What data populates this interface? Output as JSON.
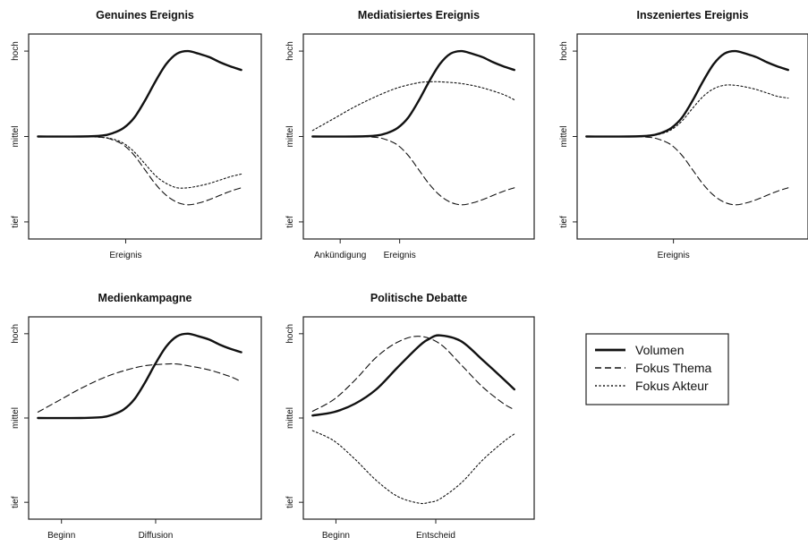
{
  "chart_data": [
    {
      "type": "line",
      "title": "Genuines Ereignis",
      "ylevels": [
        "tief",
        "mittel",
        "hoch"
      ],
      "ylim": [
        -1.2,
        1.2
      ],
      "xlim": [
        0,
        10
      ],
      "xticks": [
        {
          "x": 4.1,
          "label": "Ereignis"
        }
      ],
      "series": [
        {
          "name": "Volumen",
          "style": "solid",
          "x": [
            0,
            2,
            3,
            3.5,
            4,
            4.5,
            5,
            5.5,
            6,
            6.5,
            7,
            7.5,
            8,
            8.5,
            9,
            9.5
          ],
          "y": [
            0,
            0,
            0.01,
            0.04,
            0.1,
            0.22,
            0.42,
            0.65,
            0.85,
            0.97,
            1.0,
            0.97,
            0.93,
            0.87,
            0.82,
            0.78
          ]
        },
        {
          "name": "Fokus Thema",
          "style": "dashed",
          "x": [
            0,
            2,
            3,
            3.5,
            4,
            4.5,
            5,
            5.5,
            6,
            6.5,
            7,
            7.5,
            8,
            8.5,
            9,
            9.5
          ],
          "y": [
            0,
            0,
            -0.01,
            -0.04,
            -0.1,
            -0.22,
            -0.39,
            -0.56,
            -0.69,
            -0.77,
            -0.8,
            -0.78,
            -0.74,
            -0.69,
            -0.64,
            -0.6
          ]
        },
        {
          "name": "Fokus Akteur",
          "style": "dotted",
          "x": [
            0,
            2,
            3,
            3.5,
            4,
            4.5,
            5,
            5.5,
            6,
            6.5,
            7,
            7.5,
            8,
            8.5,
            9,
            9.5
          ],
          "y": [
            0,
            0,
            -0.01,
            -0.03,
            -0.08,
            -0.18,
            -0.32,
            -0.46,
            -0.55,
            -0.6,
            -0.6,
            -0.58,
            -0.55,
            -0.51,
            -0.47,
            -0.44
          ]
        }
      ]
    },
    {
      "type": "line",
      "title": "Mediatisiertes Ereignis",
      "ylevels": [
        "tief",
        "mittel",
        "hoch"
      ],
      "ylim": [
        -1.2,
        1.2
      ],
      "xlim": [
        0,
        10
      ],
      "xticks": [
        {
          "x": 1.3,
          "label": "Ankündigung"
        },
        {
          "x": 4.1,
          "label": "Ereignis"
        }
      ],
      "series": [
        {
          "name": "Volumen",
          "style": "solid",
          "x": [
            0,
            2,
            3,
            3.5,
            4,
            4.5,
            5,
            5.5,
            6,
            6.5,
            7,
            7.5,
            8,
            8.5,
            9,
            9.5
          ],
          "y": [
            0,
            0,
            0.01,
            0.04,
            0.1,
            0.22,
            0.42,
            0.65,
            0.85,
            0.97,
            1.0,
            0.97,
            0.93,
            0.87,
            0.82,
            0.78
          ]
        },
        {
          "name": "Fokus Thema",
          "style": "dashed",
          "x": [
            0,
            2,
            3,
            3.5,
            4,
            4.5,
            5,
            5.5,
            6,
            6.5,
            7,
            7.5,
            8,
            8.5,
            9,
            9.5
          ],
          "y": [
            0,
            0,
            -0.01,
            -0.04,
            -0.1,
            -0.22,
            -0.39,
            -0.56,
            -0.69,
            -0.77,
            -0.8,
            -0.78,
            -0.74,
            -0.69,
            -0.64,
            -0.6
          ]
        },
        {
          "name": "Fokus Akteur",
          "style": "dotted",
          "x": [
            0,
            1,
            2,
            3,
            4,
            5,
            5.5,
            6,
            7,
            8,
            9,
            9.5
          ],
          "y": [
            0.07,
            0.21,
            0.35,
            0.47,
            0.57,
            0.63,
            0.64,
            0.64,
            0.62,
            0.57,
            0.49,
            0.43
          ]
        }
      ]
    },
    {
      "type": "line",
      "title": "Inszeniertes Ereignis",
      "ylevels": [
        "tief",
        "mittel",
        "hoch"
      ],
      "ylim": [
        -1.2,
        1.2
      ],
      "xlim": [
        0,
        10
      ],
      "xticks": [
        {
          "x": 4.1,
          "label": "Ereignis"
        }
      ],
      "series": [
        {
          "name": "Volumen",
          "style": "solid",
          "x": [
            0,
            2,
            3,
            3.5,
            4,
            4.5,
            5,
            5.5,
            6,
            6.5,
            7,
            7.5,
            8,
            8.5,
            9,
            9.5
          ],
          "y": [
            0,
            0,
            0.01,
            0.04,
            0.1,
            0.22,
            0.42,
            0.65,
            0.85,
            0.97,
            1.0,
            0.97,
            0.93,
            0.87,
            0.82,
            0.78
          ]
        },
        {
          "name": "Fokus Thema",
          "style": "dashed",
          "x": [
            0,
            2,
            3,
            3.5,
            4,
            4.5,
            5,
            5.5,
            6,
            6.5,
            7,
            7.5,
            8,
            8.5,
            9,
            9.5
          ],
          "y": [
            0,
            0,
            -0.01,
            -0.04,
            -0.1,
            -0.22,
            -0.39,
            -0.56,
            -0.69,
            -0.77,
            -0.8,
            -0.78,
            -0.74,
            -0.69,
            -0.64,
            -0.6
          ]
        },
        {
          "name": "Fokus Akteur",
          "style": "dotted",
          "x": [
            0,
            2,
            3,
            3.5,
            4,
            4.5,
            5,
            5.5,
            6,
            6.5,
            7,
            7.5,
            8,
            8.5,
            9,
            9.5
          ],
          "y": [
            0,
            0,
            0.01,
            0.03,
            0.08,
            0.18,
            0.33,
            0.47,
            0.56,
            0.6,
            0.6,
            0.58,
            0.55,
            0.51,
            0.47,
            0.45
          ]
        }
      ]
    },
    {
      "type": "line",
      "title": "Medienkampagne",
      "ylevels": [
        "tief",
        "mittel",
        "hoch"
      ],
      "ylim": [
        -1.2,
        1.2
      ],
      "xlim": [
        0,
        10
      ],
      "xticks": [
        {
          "x": 1.1,
          "label": "Beginn"
        },
        {
          "x": 5.5,
          "label": "Diffusion"
        }
      ],
      "series": [
        {
          "name": "Volumen",
          "style": "solid",
          "x": [
            0,
            2,
            3,
            3.5,
            4,
            4.5,
            5,
            5.5,
            6,
            6.5,
            7,
            7.5,
            8,
            8.5,
            9,
            9.5
          ],
          "y": [
            0,
            0,
            0.01,
            0.04,
            0.1,
            0.22,
            0.42,
            0.65,
            0.85,
            0.97,
            1.0,
            0.97,
            0.93,
            0.87,
            0.82,
            0.78
          ]
        },
        {
          "name": "Fokus Thema",
          "style": "dashed",
          "x": [
            0,
            1,
            2,
            3,
            4,
            5,
            6,
            6.5,
            7,
            8,
            9,
            9.5
          ],
          "y": [
            0.07,
            0.21,
            0.35,
            0.47,
            0.56,
            0.62,
            0.64,
            0.64,
            0.62,
            0.57,
            0.49,
            0.43
          ]
        }
      ]
    },
    {
      "type": "line",
      "title": "Politische Debatte",
      "ylevels": [
        "tief",
        "mittel",
        "hoch"
      ],
      "ylim": [
        -1.2,
        1.2
      ],
      "xlim": [
        0,
        10
      ],
      "xticks": [
        {
          "x": 1.1,
          "label": "Beginn"
        },
        {
          "x": 5.8,
          "label": "Entscheid"
        }
      ],
      "series": [
        {
          "name": "Volumen",
          "style": "solid",
          "x": [
            0,
            1,
            2,
            3,
            4,
            5,
            5.5,
            6,
            7,
            8,
            9,
            9.5
          ],
          "y": [
            0.03,
            0.07,
            0.17,
            0.34,
            0.6,
            0.85,
            0.94,
            0.98,
            0.91,
            0.69,
            0.46,
            0.34
          ]
        },
        {
          "name": "Fokus Thema",
          "style": "dashed",
          "x": [
            0,
            1,
            2,
            3,
            4,
            5,
            6,
            7,
            8,
            9,
            9.5
          ],
          "y": [
            0.08,
            0.22,
            0.45,
            0.72,
            0.9,
            0.97,
            0.88,
            0.63,
            0.37,
            0.17,
            0.1
          ]
        },
        {
          "name": "Fokus Akteur",
          "style": "dotted",
          "x": [
            0,
            1,
            2,
            3,
            4,
            5,
            5.5,
            6,
            7,
            8,
            9,
            9.5
          ],
          "y": [
            -0.15,
            -0.27,
            -0.49,
            -0.74,
            -0.93,
            -1.01,
            -1.0,
            -0.96,
            -0.77,
            -0.5,
            -0.28,
            -0.19
          ]
        }
      ]
    }
  ],
  "legend": {
    "placement": "right",
    "items": [
      {
        "label": "Volumen",
        "style": "solid"
      },
      {
        "label": "Fokus Thema",
        "style": "dashed"
      },
      {
        "label": "Fokus Akteur",
        "style": "dotted"
      }
    ]
  }
}
